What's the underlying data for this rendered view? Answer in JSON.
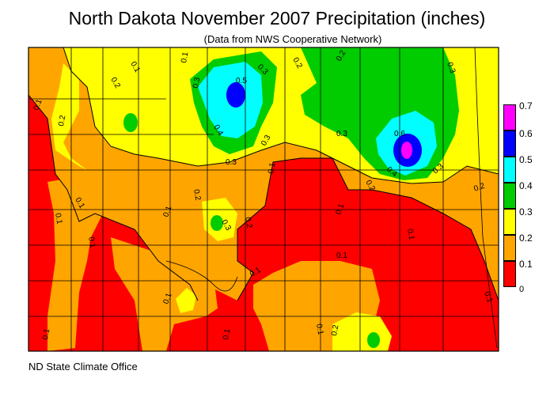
{
  "title": "North Dakota November 2007 Precipitation (inches)",
  "subtitle": "(Data from NWS Cooperative Network)",
  "credit": "ND State Climate Office",
  "colors": {
    "0": "#ff0000",
    "0.1": "#ffa500",
    "0.2": "#ffff00",
    "0.3": "#00cc00",
    "0.4": "#00ffff",
    "0.5": "#0000ff",
    "0.6": "#ff00ff",
    "county_lines": "#000000"
  },
  "legend": {
    "entries": [
      {
        "label": "0.7",
        "color": "#ff00ff"
      },
      {
        "label": "0.6",
        "color": "#0000ff"
      },
      {
        "label": "0.5",
        "color": "#00ffff"
      },
      {
        "label": "0.4",
        "color": "#00cc00"
      },
      {
        "label": "0.3",
        "color": "#ffff00"
      },
      {
        "label": "0.2",
        "color": "#ffa500"
      },
      {
        "label": "0.1",
        "color": "#ff0000"
      },
      {
        "label": "0",
        "color": ""
      }
    ]
  },
  "contour_labels": [
    "0.1",
    "0.2",
    "0.3",
    "0.4",
    "0.5",
    "0.6"
  ]
}
